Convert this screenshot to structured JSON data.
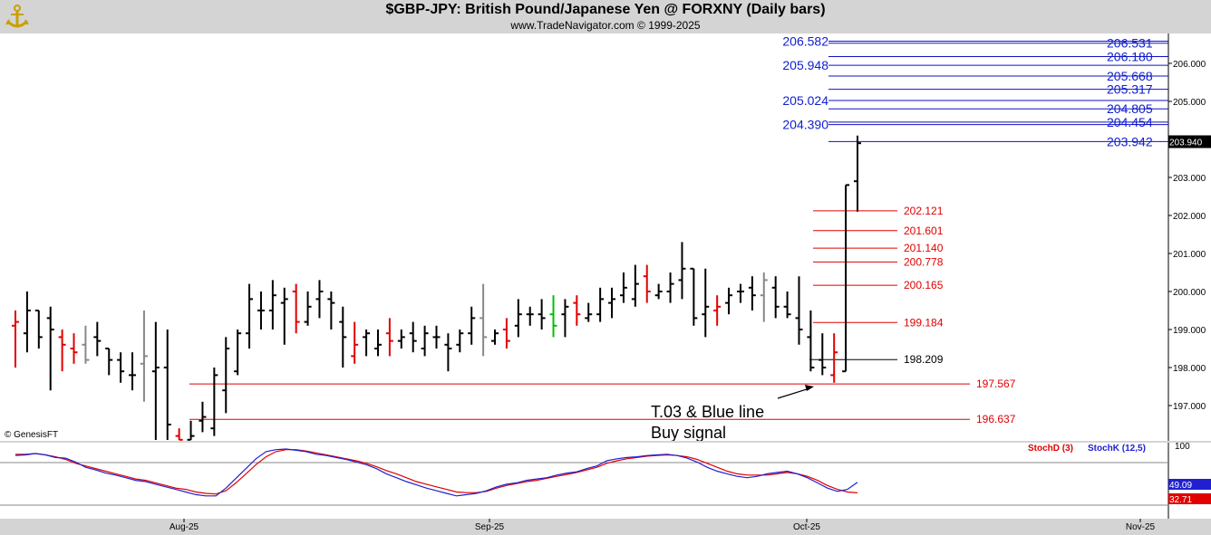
{
  "header": {
    "title": "$GBP-JPY:  British Pound/Japanese Yen @ FORXNY  (Daily bars)",
    "subtitle": "www.TradeNavigator.com © 1999-2025"
  },
  "footer_credit": "© GenesisFT",
  "chart_data": {
    "type": "ohlc",
    "price_axis": {
      "ticks": [
        "197.000",
        "198.000",
        "199.000",
        "200.000",
        "201.000",
        "202.000",
        "203.000",
        "204.000",
        "205.000",
        "206.000"
      ],
      "ylim": [
        196.0,
        207.0
      ],
      "last_price_label": "203.940"
    },
    "x_labels": [
      "Aug-25",
      "Sep-25",
      "Oct-25",
      "Nov-25"
    ],
    "bars": [
      {
        "o": 199.1,
        "h": 199.5,
        "l": 198.0,
        "c": 199.2,
        "color": "#e00000"
      },
      {
        "o": 198.9,
        "h": 200.0,
        "l": 198.4,
        "c": 199.5,
        "color": "#000000"
      },
      {
        "o": 199.5,
        "h": 199.5,
        "l": 198.5,
        "c": 198.8,
        "color": "#000000"
      },
      {
        "o": 199.3,
        "h": 199.6,
        "l": 197.4,
        "c": 199.0,
        "color": "#000000"
      },
      {
        "o": 198.8,
        "h": 199.0,
        "l": 197.9,
        "c": 198.6,
        "color": "#e00000"
      },
      {
        "o": 198.5,
        "h": 198.9,
        "l": 198.1,
        "c": 198.4,
        "color": "#e00000"
      },
      {
        "o": 198.6,
        "h": 199.1,
        "l": 198.1,
        "c": 198.2,
        "color": "#888888"
      },
      {
        "o": 198.8,
        "h": 199.2,
        "l": 198.3,
        "c": 198.7,
        "color": "#000000"
      },
      {
        "o": 198.5,
        "h": 198.5,
        "l": 197.8,
        "c": 198.2,
        "color": "#000000"
      },
      {
        "o": 198.2,
        "h": 198.4,
        "l": 197.6,
        "c": 197.9,
        "color": "#000000"
      },
      {
        "o": 197.8,
        "h": 198.4,
        "l": 197.4,
        "c": 197.8,
        "color": "#000000"
      },
      {
        "o": 198.1,
        "h": 199.5,
        "l": 197.1,
        "c": 198.3,
        "color": "#888888"
      },
      {
        "o": 197.9,
        "h": 199.2,
        "l": 195.6,
        "c": 198.0,
        "color": "#000000"
      },
      {
        "o": 198.0,
        "h": 199.0,
        "l": 195.0,
        "c": 196.5,
        "color": "#000000"
      },
      {
        "o": 196.2,
        "h": 196.4,
        "l": 195.1,
        "c": 196.1,
        "color": "#e00000"
      },
      {
        "o": 196.1,
        "h": 196.6,
        "l": 195.1,
        "c": 196.2,
        "color": "#000000"
      },
      {
        "o": 196.6,
        "h": 197.1,
        "l": 196.3,
        "c": 196.7,
        "color": "#000000"
      },
      {
        "o": 196.4,
        "h": 198.0,
        "l": 196.2,
        "c": 197.8,
        "color": "#000000"
      },
      {
        "o": 197.4,
        "h": 198.8,
        "l": 196.8,
        "c": 198.5,
        "color": "#000000"
      },
      {
        "o": 197.9,
        "h": 199.0,
        "l": 197.8,
        "c": 198.9,
        "color": "#000000"
      },
      {
        "o": 198.9,
        "h": 200.2,
        "l": 198.5,
        "c": 199.8,
        "color": "#000000"
      },
      {
        "o": 199.5,
        "h": 200.0,
        "l": 199.0,
        "c": 199.5,
        "color": "#000000"
      },
      {
        "o": 199.5,
        "h": 200.3,
        "l": 199.0,
        "c": 199.9,
        "color": "#000000"
      },
      {
        "o": 199.7,
        "h": 200.1,
        "l": 198.6,
        "c": 199.8,
        "color": "#000000"
      },
      {
        "o": 200.0,
        "h": 200.2,
        "l": 198.9,
        "c": 199.2,
        "color": "#e00000"
      },
      {
        "o": 199.2,
        "h": 200.0,
        "l": 199.1,
        "c": 199.6,
        "color": "#000000"
      },
      {
        "o": 199.8,
        "h": 200.3,
        "l": 199.3,
        "c": 200.0,
        "color": "#000000"
      },
      {
        "o": 199.8,
        "h": 200.0,
        "l": 199.0,
        "c": 199.7,
        "color": "#000000"
      },
      {
        "o": 199.2,
        "h": 199.6,
        "l": 198.0,
        "c": 198.8,
        "color": "#000000"
      },
      {
        "o": 198.3,
        "h": 199.2,
        "l": 198.1,
        "c": 198.6,
        "color": "#e00000"
      },
      {
        "o": 198.8,
        "h": 199.0,
        "l": 198.3,
        "c": 198.9,
        "color": "#000000"
      },
      {
        "o": 198.5,
        "h": 199.0,
        "l": 198.3,
        "c": 198.6,
        "color": "#000000"
      },
      {
        "o": 198.9,
        "h": 199.3,
        "l": 198.3,
        "c": 198.7,
        "color": "#e00000"
      },
      {
        "o": 198.7,
        "h": 199.0,
        "l": 198.5,
        "c": 198.8,
        "color": "#000000"
      },
      {
        "o": 198.9,
        "h": 199.2,
        "l": 198.4,
        "c": 198.7,
        "color": "#000000"
      },
      {
        "o": 198.5,
        "h": 199.1,
        "l": 198.3,
        "c": 198.9,
        "color": "#000000"
      },
      {
        "o": 198.8,
        "h": 199.1,
        "l": 198.5,
        "c": 198.8,
        "color": "#000000"
      },
      {
        "o": 198.6,
        "h": 198.9,
        "l": 197.9,
        "c": 198.5,
        "color": "#000000"
      },
      {
        "o": 198.6,
        "h": 199.0,
        "l": 198.4,
        "c": 198.9,
        "color": "#000000"
      },
      {
        "o": 198.9,
        "h": 199.6,
        "l": 198.6,
        "c": 199.3,
        "color": "#000000"
      },
      {
        "o": 199.3,
        "h": 200.2,
        "l": 198.3,
        "c": 198.8,
        "color": "#888888"
      },
      {
        "o": 198.7,
        "h": 199.0,
        "l": 198.6,
        "c": 198.9,
        "color": "#000000"
      },
      {
        "o": 199.0,
        "h": 199.3,
        "l": 198.5,
        "c": 198.7,
        "color": "#e00000"
      },
      {
        "o": 199.1,
        "h": 199.8,
        "l": 198.8,
        "c": 199.4,
        "color": "#000000"
      },
      {
        "o": 199.4,
        "h": 199.6,
        "l": 199.1,
        "c": 199.4,
        "color": "#000000"
      },
      {
        "o": 199.4,
        "h": 199.8,
        "l": 199.0,
        "c": 199.3,
        "color": "#000000"
      },
      {
        "o": 199.4,
        "h": 199.9,
        "l": 198.8,
        "c": 199.1,
        "color": "#00c000"
      },
      {
        "o": 199.4,
        "h": 199.8,
        "l": 198.8,
        "c": 199.6,
        "color": "#000000"
      },
      {
        "o": 199.7,
        "h": 199.9,
        "l": 199.1,
        "c": 199.4,
        "color": "#e00000"
      },
      {
        "o": 199.3,
        "h": 199.7,
        "l": 199.2,
        "c": 199.4,
        "color": "#000000"
      },
      {
        "o": 199.4,
        "h": 200.1,
        "l": 199.2,
        "c": 199.8,
        "color": "#000000"
      },
      {
        "o": 199.7,
        "h": 200.1,
        "l": 199.3,
        "c": 199.8,
        "color": "#000000"
      },
      {
        "o": 199.9,
        "h": 200.5,
        "l": 199.7,
        "c": 200.1,
        "color": "#000000"
      },
      {
        "o": 199.8,
        "h": 200.7,
        "l": 199.6,
        "c": 200.2,
        "color": "#000000"
      },
      {
        "o": 200.4,
        "h": 200.7,
        "l": 199.7,
        "c": 200.0,
        "color": "#e00000"
      },
      {
        "o": 199.9,
        "h": 200.2,
        "l": 199.8,
        "c": 200.0,
        "color": "#000000"
      },
      {
        "o": 200.0,
        "h": 200.5,
        "l": 199.7,
        "c": 200.2,
        "color": "#000000"
      },
      {
        "o": 200.3,
        "h": 201.3,
        "l": 199.8,
        "c": 200.6,
        "color": "#000000"
      },
      {
        "o": 200.6,
        "h": 200.6,
        "l": 199.1,
        "c": 199.3,
        "color": "#000000"
      },
      {
        "o": 199.4,
        "h": 200.6,
        "l": 198.8,
        "c": 199.6,
        "color": "#000000"
      },
      {
        "o": 199.5,
        "h": 199.9,
        "l": 199.1,
        "c": 199.6,
        "color": "#e00000"
      },
      {
        "o": 199.7,
        "h": 200.1,
        "l": 199.4,
        "c": 199.9,
        "color": "#000000"
      },
      {
        "o": 200.0,
        "h": 200.2,
        "l": 199.7,
        "c": 200.0,
        "color": "#000000"
      },
      {
        "o": 200.1,
        "h": 200.4,
        "l": 199.5,
        "c": 199.9,
        "color": "#000000"
      },
      {
        "o": 199.9,
        "h": 200.5,
        "l": 199.2,
        "c": 200.3,
        "color": "#888888"
      },
      {
        "o": 200.1,
        "h": 200.4,
        "l": 199.3,
        "c": 199.6,
        "color": "#000000"
      },
      {
        "o": 199.6,
        "h": 200.0,
        "l": 199.3,
        "c": 199.4,
        "color": "#000000"
      },
      {
        "o": 199.3,
        "h": 200.4,
        "l": 198.6,
        "c": 199.0,
        "color": "#000000"
      },
      {
        "o": 198.8,
        "h": 199.5,
        "l": 197.9,
        "c": 198.0,
        "color": "#000000"
      },
      {
        "o": 198.2,
        "h": 198.9,
        "l": 197.8,
        "c": 198.0,
        "color": "#000000"
      },
      {
        "o": 197.8,
        "h": 198.9,
        "l": 197.6,
        "c": 198.4,
        "color": "#e00000"
      },
      {
        "o": 197.9,
        "h": 202.8,
        "l": 197.9,
        "c": 202.8,
        "color": "#000000"
      },
      {
        "o": 202.9,
        "h": 204.1,
        "l": 202.1,
        "c": 203.9,
        "color": "#000000"
      }
    ],
    "blue_levels": [
      {
        "price": 206.582,
        "label": "206.582",
        "side": "left"
      },
      {
        "price": 206.531,
        "label": "206.531",
        "side": "right"
      },
      {
        "price": 206.18,
        "label": "206.180",
        "side": "right"
      },
      {
        "price": 205.948,
        "label": "205.948",
        "side": "left"
      },
      {
        "price": 205.668,
        "label": "205.668",
        "side": "right"
      },
      {
        "price": 205.317,
        "label": "205.317",
        "side": "right"
      },
      {
        "price": 205.024,
        "label": "205.024",
        "side": "left"
      },
      {
        "price": 204.805,
        "label": "204.805",
        "side": "right"
      },
      {
        "price": 204.454,
        "label": "204.454",
        "side": "right"
      },
      {
        "price": 204.39,
        "label": "204.390",
        "side": "left"
      },
      {
        "price": 203.942,
        "label": "203.942",
        "side": "right"
      }
    ],
    "red_levels": [
      {
        "price": 202.121,
        "label": "202.121",
        "span": "short"
      },
      {
        "price": 201.601,
        "label": "201.601",
        "span": "short"
      },
      {
        "price": 201.14,
        "label": "201.140",
        "span": "short"
      },
      {
        "price": 200.778,
        "label": "200.778",
        "span": "short"
      },
      {
        "price": 200.165,
        "label": "200.165",
        "span": "short"
      },
      {
        "price": 199.184,
        "label": "199.184",
        "span": "short"
      },
      {
        "price": 197.567,
        "label": "197.567",
        "span": "long"
      },
      {
        "price": 196.637,
        "label": "196.637",
        "span": "long"
      }
    ],
    "black_level": {
      "price": 198.209,
      "label": "198.209"
    },
    "annotation": {
      "line1": "T.03 & Blue line",
      "line2": "Buy signal"
    },
    "stochastic": {
      "legend_d": "StochD (3)",
      "legend_k": "StochK (12,5)",
      "scale_top_label": "100",
      "k_value_label": "49.09",
      "d_value_label": "32.71",
      "k_color": "#2020d0",
      "d_color": "#e00000",
      "k": [
        90,
        91,
        93,
        91,
        87,
        86,
        80,
        72,
        68,
        63,
        60,
        56,
        52,
        50,
        46,
        42,
        38,
        34,
        30,
        28,
        28,
        40,
        55,
        70,
        85,
        96,
        99,
        100,
        98,
        96,
        92,
        90,
        87,
        84,
        80,
        76,
        70,
        62,
        56,
        50,
        45,
        40,
        36,
        32,
        28,
        30,
        32,
        36,
        42,
        46,
        48,
        52,
        54,
        56,
        60,
        63,
        65,
        70,
        74,
        82,
        85,
        87,
        88,
        90,
        91,
        92,
        90,
        86,
        80,
        72,
        66,
        62,
        58,
        56,
        58,
        62,
        64,
        66,
        62,
        56,
        48,
        40,
        35,
        38,
        49.09
      ],
      "d": [
        92,
        92,
        93,
        91,
        88,
        84,
        78,
        74,
        70,
        66,
        62,
        58,
        54,
        52,
        48,
        44,
        40,
        38,
        34,
        32,
        31,
        36,
        48,
        62,
        76,
        88,
        96,
        99,
        99,
        97,
        94,
        91,
        88,
        85,
        82,
        78,
        73,
        67,
        62,
        56,
        50,
        46,
        42,
        38,
        34,
        33,
        33,
        35,
        40,
        44,
        47,
        50,
        52,
        55,
        58,
        61,
        64,
        68,
        72,
        78,
        82,
        85,
        87,
        89,
        90,
        91,
        90,
        88,
        84,
        78,
        72,
        66,
        62,
        60,
        60,
        60,
        62,
        64,
        62,
        58,
        52,
        44,
        38,
        34,
        32.71
      ]
    }
  }
}
